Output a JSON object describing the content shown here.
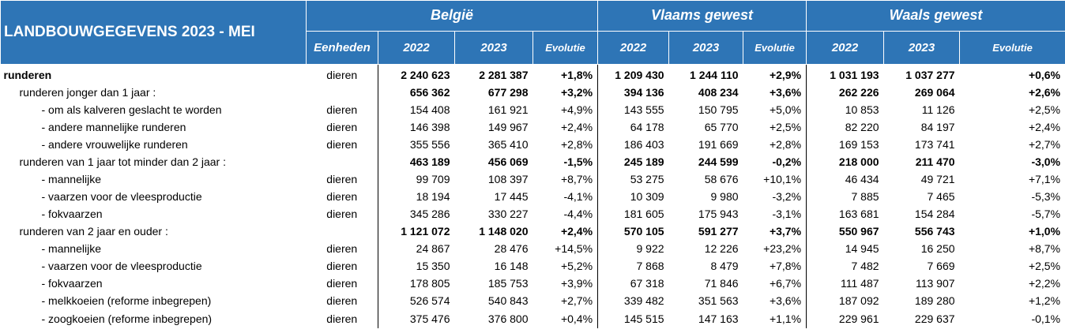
{
  "title": "LANDBOUWGEGEVENS 2023 - MEI",
  "regions": [
    "België",
    "Vlaams gewest",
    "Waals gewest"
  ],
  "unit_header": "Eenheden",
  "sub_headers": [
    "2022",
    "2023",
    "Evolutie"
  ],
  "rows": [
    {
      "label": "runderen",
      "unit": "dieren",
      "cells": [
        "2 240 623",
        "2 281 387",
        "+1,8%",
        "1 209 430",
        "1 244 110",
        "+2,9%",
        "1 031 193",
        "1 037 277",
        "+0,6%"
      ]
    },
    {
      "label": "runderen jonger dan 1 jaar :",
      "unit": "",
      "cells": [
        "656 362",
        "677 298",
        "+3,2%",
        "394 136",
        "408 234",
        "+3,6%",
        "262 226",
        "269 064",
        "+2,6%"
      ]
    },
    {
      "label": "- om als kalveren geslacht te worden",
      "unit": "dieren",
      "cells": [
        "154 408",
        "161 921",
        "+4,9%",
        "143 555",
        "150 795",
        "+5,0%",
        "10 853",
        "11 126",
        "+2,5%"
      ]
    },
    {
      "label": "- andere mannelijke runderen",
      "unit": "dieren",
      "cells": [
        "146 398",
        "149 967",
        "+2,4%",
        "64 178",
        "65 770",
        "+2,5%",
        "82 220",
        "84 197",
        "+2,4%"
      ]
    },
    {
      "label": "- andere vrouwelijke runderen",
      "unit": "dieren",
      "cells": [
        "355 556",
        "365 410",
        "+2,8%",
        "186 403",
        "191 669",
        "+2,8%",
        "169 153",
        "173 741",
        "+2,7%"
      ]
    },
    {
      "label": "runderen van 1 jaar tot minder dan 2 jaar :",
      "unit": "",
      "cells": [
        "463 189",
        "456 069",
        "-1,5%",
        "245 189",
        "244 599",
        "-0,2%",
        "218 000",
        "211 470",
        "-3,0%"
      ]
    },
    {
      "label": "- mannelijke",
      "unit": "dieren",
      "cells": [
        "99 709",
        "108 397",
        "+8,7%",
        "53 275",
        "58 676",
        "+10,1%",
        "46 434",
        "49 721",
        "+7,1%"
      ]
    },
    {
      "label": "- vaarzen voor de vleesproductie",
      "unit": "dieren",
      "cells": [
        "18 194",
        "17 445",
        "-4,1%",
        "10 309",
        "9 980",
        "-3,2%",
        "7 885",
        "7 465",
        "-5,3%"
      ]
    },
    {
      "label": "- fokvaarzen",
      "unit": "dieren",
      "cells": [
        "345 286",
        "330 227",
        "-4,4%",
        "181 605",
        "175 943",
        "-3,1%",
        "163 681",
        "154 284",
        "-5,7%"
      ]
    },
    {
      "label": "runderen van 2 jaar en ouder :",
      "unit": "",
      "cells": [
        "1 121 072",
        "1 148 020",
        "+2,4%",
        "570 105",
        "591 277",
        "+3,7%",
        "550 967",
        "556 743",
        "+1,0%"
      ]
    },
    {
      "label": "- mannelijke",
      "unit": "dieren",
      "cells": [
        "24 867",
        "28 476",
        "+14,5%",
        "9 922",
        "12 226",
        "+23,2%",
        "14 945",
        "16 250",
        "+8,7%"
      ]
    },
    {
      "label": "- vaarzen voor de vleesproductie",
      "unit": "dieren",
      "cells": [
        "15 350",
        "16 148",
        "+5,2%",
        "7 868",
        "8 479",
        "+7,8%",
        "7 482",
        "7 669",
        "+2,5%"
      ]
    },
    {
      "label": "- fokvaarzen",
      "unit": "dieren",
      "cells": [
        "178 805",
        "185 753",
        "+3,9%",
        "67 318",
        "71 846",
        "+6,7%",
        "111 487",
        "113 907",
        "+2,2%"
      ]
    },
    {
      "label": "- melkkoeien (reforme inbegrepen)",
      "unit": "dieren",
      "cells": [
        "526 574",
        "540 843",
        "+2,7%",
        "339 482",
        "351 563",
        "+3,6%",
        "187 092",
        "189 280",
        "+1,2%"
      ]
    },
    {
      "label": "- zoogkoeien (reforme inbegrepen)",
      "unit": "dieren",
      "cells": [
        "375 476",
        "376 800",
        "+0,4%",
        "145 515",
        "147 163",
        "+1,1%",
        "229 961",
        "229 637",
        "-0,1%"
      ]
    }
  ]
}
